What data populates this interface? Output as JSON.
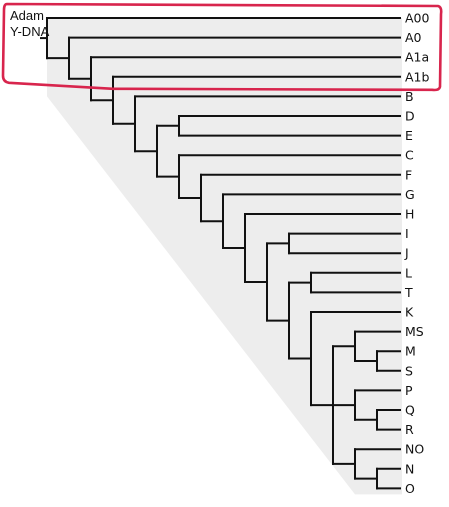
{
  "diagram": {
    "root_label_lines": [
      "Adam",
      "Y-DNA"
    ],
    "colors": {
      "line": "#111111",
      "fill": "#ededed",
      "highlight": "#d8254d",
      "text": "#111111"
    },
    "highlight_covers": [
      "A00",
      "A0",
      "A1a",
      "A1b"
    ],
    "tree": {
      "children": [
        {
          "label": "A00"
        },
        {
          "children": [
            {
              "label": "A0"
            },
            {
              "children": [
                {
                  "label": "A1a"
                },
                {
                  "children": [
                    {
                      "label": "A1b"
                    },
                    {
                      "children": [
                        {
                          "label": "B"
                        },
                        {
                          "children": [
                            {
                              "children": [
                                {
                                  "label": "D"
                                },
                                {
                                  "label": "E"
                                }
                              ]
                            },
                            {
                              "children": [
                                {
                                  "label": "C"
                                },
                                {
                                  "children": [
                                    {
                                      "label": "F"
                                    },
                                    {
                                      "children": [
                                        {
                                          "label": "G"
                                        },
                                        {
                                          "children": [
                                            {
                                              "label": "H"
                                            },
                                            {
                                              "children": [
                                                {
                                                  "children": [
                                                    {
                                                      "label": "I"
                                                    },
                                                    {
                                                      "label": "J"
                                                    }
                                                  ]
                                                },
                                                {
                                                  "children": [
                                                    {
                                                      "children": [
                                                        {
                                                          "label": "L"
                                                        },
                                                        {
                                                          "label": "T"
                                                        }
                                                      ]
                                                    },
                                                    {
                                                      "children": [
                                                        {
                                                          "label": "K"
                                                        },
                                                        {
                                                          "children": [
                                                            {
                                                              "children": [
                                                                {
                                                                  "label": "MS"
                                                                },
                                                                {
                                                                  "children": [
                                                                    {
                                                                      "label": "M"
                                                                    },
                                                                    {
                                                                      "label": "S"
                                                                    }
                                                                  ]
                                                                }
                                                              ]
                                                            },
                                                            {
                                                              "children": [
                                                                {
                                                                  "label": "P"
                                                                },
                                                                {
                                                                  "children": [
                                                                    {
                                                                      "label": "Q"
                                                                    },
                                                                    {
                                                                      "label": "R"
                                                                    }
                                                                  ]
                                                                }
                                                              ]
                                                            },
                                                            {
                                                              "children": [
                                                                {
                                                                  "label": "NO"
                                                                },
                                                                {
                                                                  "children": [
                                                                    {
                                                                      "label": "N"
                                                                    },
                                                                    {
                                                                      "label": "O"
                                                                    }
                                                                  ]
                                                                }
                                                              ]
                                                            }
                                                          ]
                                                        }
                                                      ]
                                                    }
                                                  ]
                                                }
                                              ]
                                            }
                                          ]
                                        }
                                      ]
                                    }
                                  ]
                                }
                              ]
                            }
                          ]
                        }
                      ]
                    }
                  ]
                }
              ]
            }
          ]
        }
      ]
    }
  }
}
